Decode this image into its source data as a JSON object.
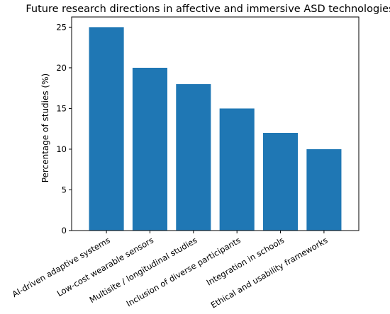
{
  "chart_data": {
    "type": "bar",
    "title": "Future research directions in affective and immersive ASD technologies",
    "xlabel": "",
    "ylabel": "Percentage of studies (%)",
    "categories": [
      "AI-driven adaptive systems",
      "Low-cost wearable sensors",
      "Multisite / longitudinal studies",
      "Inclusion of diverse participants",
      "Integration in schools",
      "Ethical and usability frameworks"
    ],
    "values": [
      25,
      20,
      18,
      15,
      12,
      10
    ],
    "ylim": [
      0,
      26.25
    ],
    "yticks": [
      0,
      5,
      10,
      15,
      20,
      25
    ],
    "bar_color": "#1f77b4",
    "grid": false,
    "legend": "none"
  }
}
